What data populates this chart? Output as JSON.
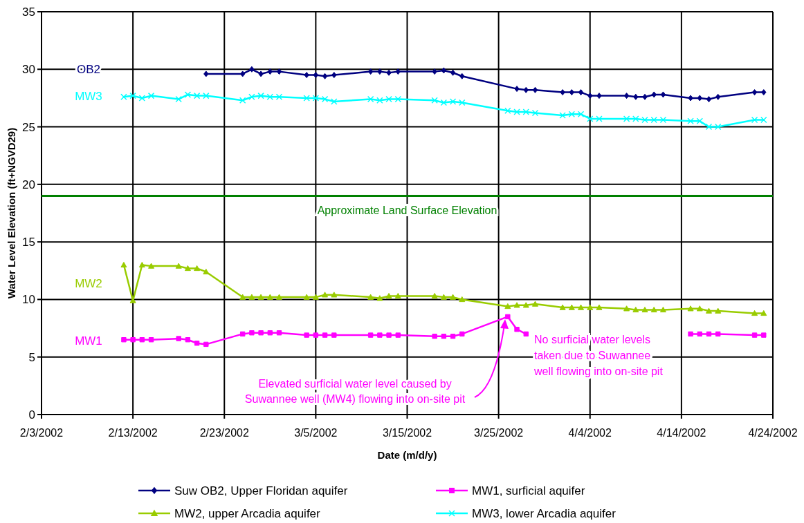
{
  "chart_data": {
    "type": "line",
    "xlabel": "Date (m/d/y)",
    "ylabel": "Water Level Elevation (ft+NGVD29)",
    "xlim": [
      "2002-02-03",
      "2002-04-24"
    ],
    "xticks": [
      {
        "value": "2002-02-03",
        "label": "2/3/2002"
      },
      {
        "value": "2002-02-13",
        "label": "2/13/2002"
      },
      {
        "value": "2002-02-23",
        "label": "2/23/2002"
      },
      {
        "value": "2002-03-05",
        "label": "3/5/2002"
      },
      {
        "value": "2002-03-15",
        "label": "3/15/2002"
      },
      {
        "value": "2002-03-25",
        "label": "3/25/2002"
      },
      {
        "value": "2002-04-04",
        "label": "4/4/2002"
      },
      {
        "value": "2002-04-14",
        "label": "4/14/2002"
      },
      {
        "value": "2002-04-24",
        "label": "4/24/2002"
      }
    ],
    "ylim": [
      0,
      35
    ],
    "yticks": [
      0,
      5,
      10,
      15,
      20,
      25,
      30,
      35
    ],
    "grid": true,
    "legend": "bottom",
    "line_style": "solid",
    "series": [
      {
        "name": "Suw OB2, Upper Floridan aquifer",
        "color": "#000080",
        "marker": "diamond",
        "x": [
          "2002-02-21",
          "2002-02-25",
          "2002-02-26",
          "2002-02-27",
          "2002-02-28",
          "2002-03-01",
          "2002-03-04",
          "2002-03-05",
          "2002-03-06",
          "2002-03-07",
          "2002-03-11",
          "2002-03-12",
          "2002-03-13",
          "2002-03-14",
          "2002-03-18",
          "2002-03-19",
          "2002-03-20",
          "2002-03-21",
          "2002-03-27",
          "2002-03-28",
          "2002-03-29",
          "2002-04-01",
          "2002-04-02",
          "2002-04-03",
          "2002-04-04",
          "2002-04-05",
          "2002-04-08",
          "2002-04-09",
          "2002-04-10",
          "2002-04-11",
          "2002-04-12",
          "2002-04-15",
          "2002-04-16",
          "2002-04-17",
          "2002-04-18",
          "2002-04-22",
          "2002-04-23"
        ],
        "values": [
          29.6,
          29.6,
          30.0,
          29.6,
          29.8,
          29.8,
          29.5,
          29.5,
          29.4,
          29.5,
          29.8,
          29.8,
          29.7,
          29.8,
          29.8,
          29.9,
          29.7,
          29.4,
          28.3,
          28.2,
          28.2,
          28.0,
          28.0,
          28.0,
          27.7,
          27.7,
          27.7,
          27.6,
          27.6,
          27.8,
          27.8,
          27.5,
          27.5,
          27.4,
          27.6,
          28.0,
          28.0
        ]
      },
      {
        "name": "MW1, surficial aquifer",
        "color": "#ff00ff",
        "marker": "square",
        "x": [
          "2002-02-12",
          "2002-02-13",
          "2002-02-14",
          "2002-02-15",
          "2002-02-18",
          "2002-02-19",
          "2002-02-20",
          "2002-02-21",
          "2002-02-25",
          "2002-02-26",
          "2002-02-27",
          "2002-02-28",
          "2002-03-01",
          "2002-03-04",
          "2002-03-05",
          "2002-03-06",
          "2002-03-07",
          "2002-03-11",
          "2002-03-12",
          "2002-03-13",
          "2002-03-14",
          "2002-03-18",
          "2002-03-19",
          "2002-03-20",
          "2002-03-21",
          "2002-03-26",
          "2002-03-27",
          "2002-03-28",
          "2002-04-05",
          "2002-04-15",
          "2002-04-16",
          "2002-04-17",
          "2002-04-18",
          "2002-04-22",
          "2002-04-23"
        ],
        "values": [
          6.5,
          6.5,
          6.5,
          6.5,
          6.6,
          6.5,
          6.2,
          6.1,
          7.0,
          7.1,
          7.1,
          7.1,
          7.1,
          6.9,
          6.9,
          6.9,
          6.9,
          6.9,
          6.9,
          6.9,
          6.9,
          6.8,
          6.8,
          6.8,
          7.0,
          8.5,
          7.4,
          7.0,
          null,
          7.0,
          7.0,
          7.0,
          7.0,
          6.9,
          6.9
        ]
      },
      {
        "name": "MW2, upper Arcadia aquifer",
        "color": "#99cc00",
        "marker": "triangle",
        "x": [
          "2002-02-12",
          "2002-02-13",
          "2002-02-14",
          "2002-02-15",
          "2002-02-18",
          "2002-02-19",
          "2002-02-20",
          "2002-02-21",
          "2002-02-25",
          "2002-02-26",
          "2002-02-27",
          "2002-02-28",
          "2002-03-01",
          "2002-03-04",
          "2002-03-05",
          "2002-03-06",
          "2002-03-07",
          "2002-03-11",
          "2002-03-12",
          "2002-03-13",
          "2002-03-14",
          "2002-03-18",
          "2002-03-19",
          "2002-03-20",
          "2002-03-21",
          "2002-03-26",
          "2002-03-27",
          "2002-03-28",
          "2002-03-29",
          "2002-04-01",
          "2002-04-02",
          "2002-04-03",
          "2002-04-04",
          "2002-04-05",
          "2002-04-08",
          "2002-04-09",
          "2002-04-10",
          "2002-04-11",
          "2002-04-12",
          "2002-04-15",
          "2002-04-16",
          "2002-04-17",
          "2002-04-18",
          "2002-04-22",
          "2002-04-23"
        ],
        "values": [
          13.0,
          9.9,
          13.0,
          12.9,
          12.9,
          12.7,
          12.7,
          12.4,
          10.2,
          10.2,
          10.2,
          10.2,
          10.2,
          10.2,
          10.2,
          10.4,
          10.4,
          10.2,
          10.1,
          10.3,
          10.3,
          10.3,
          10.2,
          10.2,
          10.0,
          9.4,
          9.5,
          9.5,
          9.6,
          9.3,
          9.3,
          9.3,
          9.3,
          9.3,
          9.2,
          9.1,
          9.1,
          9.1,
          9.1,
          9.2,
          9.2,
          9.0,
          9.0,
          8.8,
          8.8
        ]
      },
      {
        "name": "MW3, lower Arcadia aquifer",
        "color": "#00ffff",
        "marker": "cross",
        "x": [
          "2002-02-12",
          "2002-02-13",
          "2002-02-14",
          "2002-02-15",
          "2002-02-18",
          "2002-02-19",
          "2002-02-20",
          "2002-02-21",
          "2002-02-25",
          "2002-02-26",
          "2002-02-27",
          "2002-02-28",
          "2002-03-01",
          "2002-03-04",
          "2002-03-05",
          "2002-03-06",
          "2002-03-07",
          "2002-03-11",
          "2002-03-12",
          "2002-03-13",
          "2002-03-14",
          "2002-03-18",
          "2002-03-19",
          "2002-03-20",
          "2002-03-21",
          "2002-03-26",
          "2002-03-27",
          "2002-03-28",
          "2002-03-29",
          "2002-04-01",
          "2002-04-02",
          "2002-04-03",
          "2002-04-04",
          "2002-04-05",
          "2002-04-08",
          "2002-04-09",
          "2002-04-10",
          "2002-04-11",
          "2002-04-12",
          "2002-04-15",
          "2002-04-16",
          "2002-04-17",
          "2002-04-18",
          "2002-04-22",
          "2002-04-23"
        ],
        "values": [
          27.6,
          27.7,
          27.5,
          27.7,
          27.4,
          27.8,
          27.7,
          27.7,
          27.3,
          27.6,
          27.7,
          27.6,
          27.6,
          27.5,
          27.5,
          27.4,
          27.2,
          27.4,
          27.3,
          27.4,
          27.4,
          27.3,
          27.1,
          27.2,
          27.1,
          26.4,
          26.3,
          26.3,
          26.2,
          26.0,
          26.1,
          26.1,
          25.7,
          25.7,
          25.7,
          25.7,
          25.6,
          25.6,
          25.6,
          25.5,
          25.5,
          25.0,
          25.0,
          25.6,
          25.6
        ]
      }
    ],
    "ref_lines": [
      {
        "axis": "y",
        "value": 19,
        "label": "Approximate Land Surface Elevation",
        "color": "#008000"
      }
    ],
    "annotations": [
      "OB2",
      "MW3",
      "MW2",
      "MW1",
      "Elevated surficial water level caused by Suwannee well (MW4) flowing into on-site pit",
      "No surficial water levels taken due to Suwannee well flowing into on-site pit"
    ]
  }
}
